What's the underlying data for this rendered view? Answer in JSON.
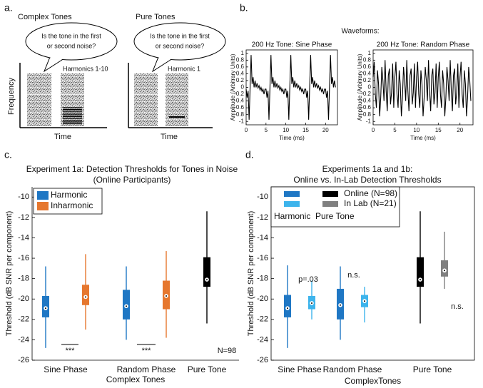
{
  "labels": [
    "a.",
    "b.",
    "c.",
    "d."
  ],
  "schematic": [
    {
      "title": "Complex Tones",
      "question": [
        "Is the tone in the first",
        "or second noise?"
      ],
      "label": "Harmonics 1-10",
      "ylabel": "Frequency",
      "xlabel": "Time"
    },
    {
      "title": "Pure Tones",
      "question": [
        "Is the tone in the first",
        "or second noise?"
      ],
      "label": "Harmonic 1",
      "xlabel": "Time"
    }
  ],
  "waveforms_title": "Waveforms:",
  "chart_data": [
    {
      "type": "line",
      "title": "200 Hz Tone: Sine Phase",
      "xlabel": "Time (ms)",
      "ylabel": "Amplitude (Arbitrary Units)",
      "xlim": [
        0,
        23
      ],
      "xticks": [
        0,
        5,
        10,
        15,
        20
      ],
      "ylim": [
        -1.1,
        1.1
      ],
      "yticks": [
        -1,
        -0.8,
        -0.6,
        -0.4,
        -0.2,
        0,
        0.2,
        0.4,
        0.6,
        0.8,
        1
      ],
      "x": [
        0,
        0.25,
        0.5,
        0.75,
        1,
        1.25,
        1.5,
        1.75,
        2,
        2.25,
        2.5,
        2.75,
        3,
        3.25,
        3.5,
        3.75,
        4,
        4.25,
        4.5,
        4.75,
        5,
        5.25,
        5.5,
        5.75,
        6,
        6.25,
        6.5,
        6.75,
        7,
        7.25,
        7.5,
        7.75,
        8,
        8.25,
        8.5,
        8.75,
        9,
        9.25,
        9.5,
        9.75,
        10,
        10.25,
        10.5,
        10.75,
        11,
        11.25,
        11.5,
        11.75,
        12,
        12.25,
        12.5,
        12.75,
        13,
        13.25,
        13.5,
        13.75,
        14,
        14.25,
        14.5,
        14.75,
        15,
        15.25,
        15.5,
        15.75,
        16,
        16.25,
        16.5,
        16.75,
        17,
        17.25,
        17.5,
        17.75,
        18,
        18.25,
        18.5,
        18.75,
        19,
        19.25,
        19.5,
        19.75,
        20,
        20.25,
        20.5,
        20.75,
        21,
        21.25,
        21.5,
        21.75,
        22,
        22.25,
        22.5
      ],
      "series": [
        {
          "color": "#000000",
          "values": [
            -0.05,
            -0.3,
            -0.1,
            -0.95,
            0,
            0.95,
            0.1,
            0.3,
            0,
            0.2,
            0,
            0.12,
            -0.02,
            0.05,
            -0.08,
            0,
            -0.12,
            -0.05,
            -0.2,
            -0.05,
            -0.05,
            -0.3,
            -0.1,
            -0.95,
            0,
            0.95,
            0.1,
            0.3,
            0,
            0.2,
            0,
            0.12,
            -0.02,
            0.05,
            -0.08,
            0,
            -0.12,
            -0.05,
            -0.2,
            -0.05,
            -0.05,
            -0.3,
            -0.1,
            -0.95,
            0,
            0.95,
            0.1,
            0.3,
            0,
            0.2,
            0,
            0.12,
            -0.02,
            0.05,
            -0.08,
            0,
            -0.12,
            -0.05,
            -0.2,
            -0.05,
            -0.05,
            -0.3,
            -0.1,
            -0.95,
            0,
            0.95,
            0.1,
            0.3,
            0,
            0.2,
            0,
            0.12,
            -0.02,
            0.05,
            -0.08,
            0,
            -0.12,
            -0.05,
            -0.2,
            -0.05,
            -0.05,
            -0.3,
            -0.1,
            -0.95,
            0,
            0.95,
            0.1,
            0.3,
            0,
            0.2,
            0
          ]
        }
      ]
    },
    {
      "type": "line",
      "title": "200 Hz Tone: Random Phase",
      "xlabel": "Time (ms)",
      "ylabel": "Amplitude (Arbitrary Units)",
      "xlim": [
        0,
        23
      ],
      "xticks": [
        0,
        5,
        10,
        15,
        20
      ],
      "ylim": [
        -1.1,
        1.1
      ],
      "yticks": [
        -1,
        -0.8,
        -0.6,
        -0.4,
        -0.2,
        0,
        0.2,
        0.4,
        0.6,
        0.8,
        1
      ],
      "x": [
        0,
        0.25,
        0.5,
        0.75,
        1,
        1.25,
        1.5,
        1.75,
        2,
        2.25,
        2.5,
        2.75,
        3,
        3.25,
        3.5,
        3.75,
        4,
        4.25,
        4.5,
        4.75,
        5,
        5.25,
        5.5,
        5.75,
        6,
        6.25,
        6.5,
        6.75,
        7,
        7.25,
        7.5,
        7.75,
        8,
        8.25,
        8.5,
        8.75,
        9,
        9.25,
        9.5,
        9.75,
        10,
        10.25,
        10.5,
        10.75,
        11,
        11.25,
        11.5,
        11.75,
        12,
        12.25,
        12.5,
        12.75,
        13,
        13.25,
        13.5,
        13.75,
        14,
        14.25,
        14.5,
        14.75,
        15,
        15.25,
        15.5,
        15.75,
        16,
        16.25,
        16.5,
        16.75,
        17,
        17.25,
        17.5,
        17.75,
        18,
        18.25,
        18.5,
        18.75,
        19,
        19.25,
        19.5,
        19.75,
        20,
        20.25,
        20.5,
        20.75,
        21,
        21.25,
        21.5,
        21.75,
        22,
        22.25,
        22.5
      ],
      "series": [
        {
          "color": "#000000",
          "values": [
            0.3,
            0.75,
            -0.2,
            -0.6,
            0.5,
            0.1,
            -0.85,
            -0.3,
            0.6,
            0.2,
            -0.4,
            0.8,
            -0.1,
            -0.7,
            0.35,
            0.55,
            -0.5,
            -0.15,
            0.7,
            -0.6,
            0.3,
            0.75,
            -0.2,
            -0.6,
            0.5,
            0.1,
            -0.85,
            -0.3,
            0.6,
            0.2,
            -0.4,
            0.8,
            -0.1,
            -0.7,
            0.35,
            0.55,
            -0.5,
            -0.15,
            0.7,
            -0.6,
            0.3,
            0.75,
            -0.2,
            -0.6,
            0.5,
            0.1,
            -0.85,
            -0.3,
            0.6,
            0.2,
            -0.4,
            0.8,
            -0.1,
            -0.7,
            0.35,
            0.55,
            -0.5,
            -0.15,
            0.7,
            -0.6,
            0.3,
            0.75,
            -0.2,
            -0.6,
            0.5,
            0.1,
            -0.85,
            -0.3,
            0.6,
            0.2,
            -0.4,
            0.8,
            -0.1,
            -0.7,
            0.35,
            0.55,
            -0.5,
            -0.15,
            0.7,
            -0.6,
            0.3,
            0.75,
            -0.2,
            -0.6,
            0.5,
            0.1,
            -0.85,
            -0.3,
            0.6,
            0.2,
            -0.4
          ]
        }
      ]
    },
    {
      "type": "box",
      "title": [
        "Experiment 1a: Detection Thresholds for Tones in Noise",
        "(Online Participants)"
      ],
      "ylabel": "Threshold (dB SNR per component)",
      "xlabel": "Complex Tones",
      "categories": [
        "Sine Phase",
        "Random Phase",
        "Pure Tone"
      ],
      "ylim": [
        -26,
        -9
      ],
      "yticks": [
        -26,
        -24,
        -22,
        -20,
        -18,
        -16,
        -14,
        -12,
        -10
      ],
      "series": [
        {
          "name": "Harmonic",
          "color": "#1f77c4",
          "boxes": [
            {
              "low": -24.8,
              "q1": -21.8,
              "median": -20.9,
              "q3": -19.7,
              "high": -16.8
            },
            {
              "low": -24,
              "q1": -22,
              "median": -20.7,
              "q3": -19.1,
              "high": -16.8
            },
            null
          ]
        },
        {
          "name": "Inharmonic",
          "color": "#e6772e",
          "boxes": [
            {
              "low": -23,
              "q1": -20.6,
              "median": -19.8,
              "q3": -18.6,
              "high": -15.6
            },
            {
              "low": -23.8,
              "q1": -21,
              "median": -19.7,
              "q3": -18.2,
              "high": -15.3
            },
            null
          ]
        }
      ],
      "pure_tone_box": {
        "color": "#000000",
        "low": -22.4,
        "q1": -18.8,
        "median": -18.1,
        "q3": -15.9,
        "high": -11.4
      },
      "annotations": [
        "***",
        "***",
        "N=98"
      ],
      "legend": "upper left"
    },
    {
      "type": "box",
      "title": [
        "Experiments 1a and 1b:",
        "Online vs. In-Lab Detection Thresholds"
      ],
      "ylabel": "Threshold (dB SNR per component)",
      "xlabel": "ComplexTones",
      "categories": [
        "Sine Phase",
        "Random Phase",
        "Pure Tone"
      ],
      "ylim": [
        -26,
        -9
      ],
      "yticks": [
        -26,
        -24,
        -22,
        -20,
        -18,
        -16,
        -14,
        -12,
        -10
      ],
      "series": [
        {
          "name": "Online (N=98)",
          "colors": [
            "#1f77c4",
            "#1f77c4",
            "#000000"
          ],
          "boxes": [
            {
              "low": -24.8,
              "q1": -21.8,
              "median": -20.9,
              "q3": -19.6,
              "high": -16.7
            },
            {
              "low": -24,
              "q1": -22,
              "median": -20.6,
              "q3": -19,
              "high": -16.8
            },
            {
              "low": -22.4,
              "q1": -18.8,
              "median": -18.1,
              "q3": -15.9,
              "high": -11.4
            }
          ]
        },
        {
          "name": "In Lab (N=21)",
          "colors": [
            "#3db4ec",
            "#3db4ec",
            "#808080"
          ],
          "boxes": [
            {
              "low": -22,
              "q1": -21,
              "median": -20.4,
              "q3": -19.7,
              "high": -18.2
            },
            {
              "low": -22.3,
              "q1": -20.8,
              "median": -20.2,
              "q3": -19.6,
              "high": -18.8
            },
            {
              "low": -19,
              "q1": -17.8,
              "median": -17.2,
              "q3": -16.2,
              "high": -13.4
            }
          ]
        }
      ],
      "legend_columns": [
        "Harmonic",
        "Pure Tone"
      ],
      "annotations": [
        "p=.03",
        "n.s.",
        "n.s."
      ],
      "legend": "upper left"
    }
  ]
}
